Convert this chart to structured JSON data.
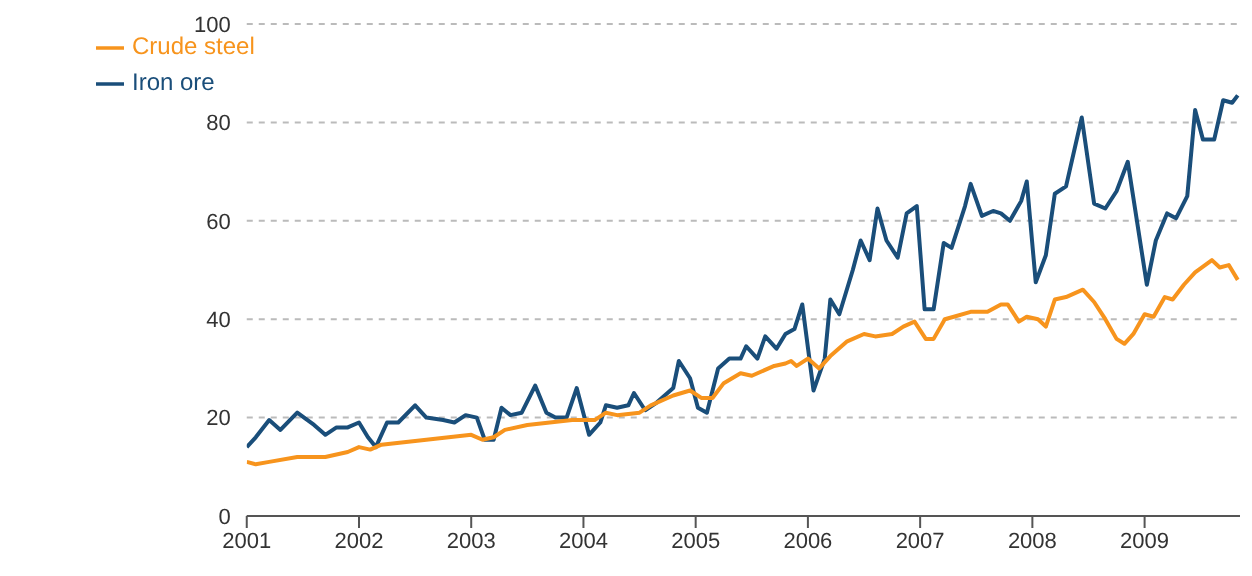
{
  "chart_data": {
    "type": "line",
    "xlim": [
      2001,
      2009.85
    ],
    "xticks": [
      2001,
      2002,
      2003,
      2004,
      2005,
      2006,
      2007,
      2008,
      2009
    ],
    "ylim": [
      0,
      100
    ],
    "yticks": [
      0,
      20,
      40,
      60,
      80,
      100
    ],
    "grid": "y",
    "legend": "top left",
    "marker": "none",
    "line_style": "solid",
    "series": [
      {
        "name": "Iron ore",
        "color": "#1a4e7a",
        "x": [
          2001.0,
          2001.08,
          2001.2,
          2001.3,
          2001.45,
          2001.6,
          2001.7,
          2001.8,
          2001.9,
          2002.0,
          2002.08,
          2002.15,
          2002.25,
          2002.35,
          2002.5,
          2002.6,
          2002.75,
          2002.85,
          2002.95,
          2003.05,
          2003.12,
          2003.2,
          2003.27,
          2003.35,
          2003.45,
          2003.57,
          2003.67,
          2003.75,
          2003.85,
          2003.94,
          2004.05,
          2004.15,
          2004.2,
          2004.3,
          2004.4,
          2004.45,
          2004.55,
          2004.65,
          2004.8,
          2004.85,
          2004.95,
          2005.02,
          2005.1,
          2005.2,
          2005.3,
          2005.4,
          2005.45,
          2005.55,
          2005.62,
          2005.72,
          2005.8,
          2005.88,
          2005.95,
          2006.05,
          2006.15,
          2006.2,
          2006.28,
          2006.4,
          2006.47,
          2006.55,
          2006.62,
          2006.7,
          2006.8,
          2006.88,
          2006.97,
          2007.04,
          2007.12,
          2007.21,
          2007.28,
          2007.4,
          2007.45,
          2007.55,
          2007.65,
          2007.72,
          2007.8,
          2007.9,
          2007.95,
          2008.03,
          2008.12,
          2008.2,
          2008.3,
          2008.38,
          2008.44,
          2008.55,
          2008.65,
          2008.75,
          2008.85,
          2009.02,
          2009.1,
          2009.2,
          2009.28,
          2009.38,
          2009.45,
          2009.52,
          2009.62,
          2009.7,
          2009.78,
          2009.83
        ],
        "values": [
          14,
          16,
          19.5,
          17.5,
          21,
          18.5,
          16.5,
          18,
          18,
          19,
          16,
          14,
          19,
          19,
          22.5,
          20,
          19.5,
          19,
          20.5,
          20,
          15.5,
          15.5,
          22,
          20.5,
          21,
          26.5,
          21,
          20,
          20,
          26,
          16.5,
          19,
          22.5,
          22,
          22.5,
          25,
          21.5,
          23,
          26,
          31.5,
          28,
          22,
          21,
          30,
          32,
          32,
          34.5,
          32,
          36.5,
          34,
          37,
          38,
          43,
          25.5,
          32,
          44,
          41,
          50,
          56,
          52,
          62.5,
          56,
          52.5,
          61.5,
          63,
          42,
          42,
          55.5,
          54.5,
          63,
          67.5,
          61,
          62,
          61.5,
          60,
          64,
          68,
          47.5,
          53,
          65.5,
          67,
          75,
          81,
          63.5,
          62.5,
          66,
          72,
          47,
          56,
          61.5,
          60.5,
          65,
          82.5,
          76.5,
          76.5,
          84.5,
          84,
          85.5
        ]
      },
      {
        "name": "Crude steel",
        "color": "#f7941d",
        "x": [
          2001.0,
          2001.08,
          2001.2,
          2001.45,
          2001.7,
          2001.9,
          2002.0,
          2002.1,
          2002.2,
          2002.4,
          2002.6,
          2002.8,
          2003.0,
          2003.1,
          2003.2,
          2003.3,
          2003.5,
          2003.7,
          2003.9,
          2004.0,
          2004.1,
          2004.2,
          2004.3,
          2004.5,
          2004.6,
          2004.8,
          2004.95,
          2005.05,
          2005.15,
          2005.25,
          2005.4,
          2005.5,
          2005.7,
          2005.8,
          2005.85,
          2005.9,
          2006.0,
          2006.1,
          2006.2,
          2006.35,
          2006.5,
          2006.6,
          2006.75,
          2006.85,
          2006.95,
          2007.05,
          2007.12,
          2007.22,
          2007.3,
          2007.45,
          2007.6,
          2007.72,
          2007.78,
          2007.88,
          2007.95,
          2008.05,
          2008.12,
          2008.2,
          2008.3,
          2008.45,
          2008.55,
          2008.65,
          2008.75,
          2008.82,
          2008.9,
          2009.0,
          2009.08,
          2009.18,
          2009.25,
          2009.35,
          2009.45,
          2009.6,
          2009.67,
          2009.75,
          2009.83
        ],
        "values": [
          11,
          10.5,
          11,
          12,
          12,
          13,
          14,
          13.5,
          14.5,
          15,
          15.5,
          16,
          16.5,
          15.5,
          16,
          17.5,
          18.5,
          19,
          19.5,
          19.5,
          19.5,
          21,
          20.5,
          21,
          22.5,
          24.5,
          25.5,
          24,
          24,
          27,
          29,
          28.5,
          30.5,
          31,
          31.5,
          30.5,
          32,
          30,
          32.5,
          35.5,
          37,
          36.5,
          37,
          38.5,
          39.5,
          36,
          36,
          40,
          40.5,
          41.5,
          41.5,
          43,
          43,
          39.5,
          40.5,
          40,
          38.5,
          44,
          44.5,
          46,
          43.5,
          40,
          36,
          35,
          37,
          41,
          40.5,
          44.5,
          44,
          47,
          49.5,
          52,
          50.5,
          51,
          48
        ]
      }
    ]
  }
}
